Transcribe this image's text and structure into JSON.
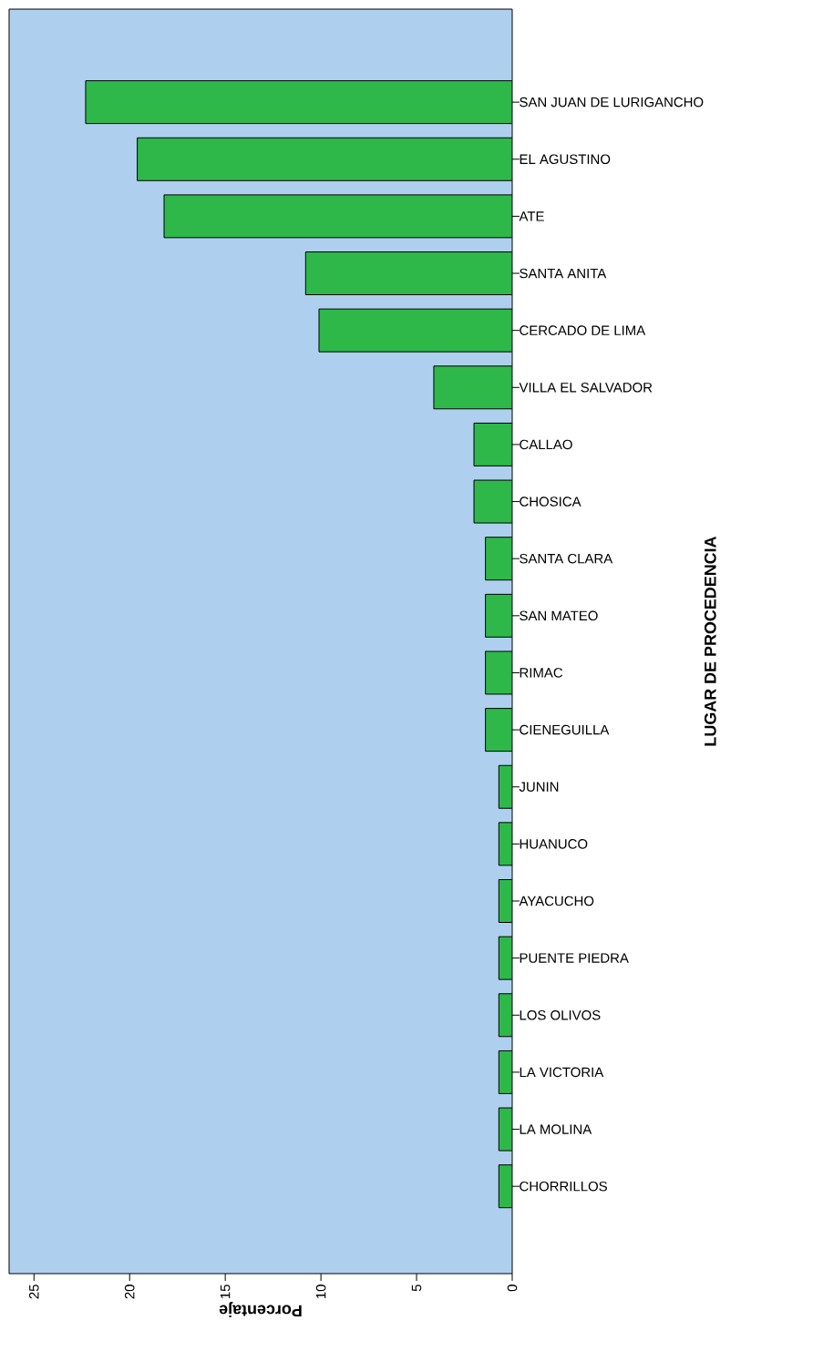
{
  "chart_data": {
    "type": "bar",
    "orientation": "horizontal",
    "xlabel": "Porcentaje",
    "ylabel": "LUGAR DE PROCEDENCIA",
    "categories": [
      "SAN JUAN DE LURIGANCHO",
      "EL AGUSTINO",
      "ATE",
      "SANTA ANITA",
      "CERCADO DE LIMA",
      "VILLA EL SALVADOR",
      "CALLAO",
      "CHOSICA",
      "SANTA CLARA",
      "SAN MATEO",
      "RIMAC",
      "CIENEGUILLA",
      "JUNIN",
      "HUANUCO",
      "AYACUCHO",
      "PUENTE PIEDRA",
      "LOS OLIVOS",
      "LA VICTORIA",
      "LA MOLINA",
      "CHORRILLOS"
    ],
    "values": [
      22.3,
      19.6,
      18.2,
      10.8,
      10.1,
      4.1,
      2.0,
      2.0,
      1.4,
      1.4,
      1.4,
      1.4,
      0.7,
      0.7,
      0.7,
      0.7,
      0.7,
      0.7,
      0.7,
      0.7
    ],
    "color": "#2fb84a",
    "xlim": [
      26.3,
      0
    ],
    "xticks": [
      25,
      20,
      15,
      10,
      5,
      0
    ]
  }
}
